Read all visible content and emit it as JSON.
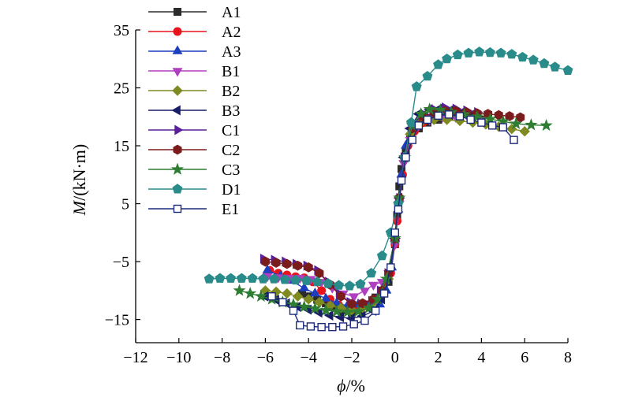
{
  "chart_data": {
    "type": "scatter",
    "title": "",
    "xlabel": {
      "var": "ϕ",
      "unit": "/%"
    },
    "ylabel": {
      "var": "M",
      "unit": "/(kN·m)"
    },
    "xlim": [
      -12,
      8
    ],
    "ylim": [
      -19,
      35
    ],
    "xticks": [
      -12,
      -10,
      -8,
      -6,
      -4,
      -2,
      0,
      2,
      4,
      6,
      8
    ],
    "yticks": [
      -15,
      -5,
      5,
      15,
      25,
      35
    ],
    "tick_labels_x": [
      "−12",
      "−10",
      "−8",
      "−6",
      "−4",
      "−2",
      "0",
      "2",
      "4",
      "6",
      "8"
    ],
    "tick_labels_y": [
      "−15",
      "−5",
      "5",
      "15",
      "25",
      "35"
    ],
    "legend_position": "top-left",
    "series": [
      {
        "name": "A1",
        "color": "#2b2b2b",
        "marker": "square",
        "points": [
          [
            -4.3,
            -10.5
          ],
          [
            -4,
            -11
          ],
          [
            -3.6,
            -11.6
          ],
          [
            -3.2,
            -12.2
          ],
          [
            -2.8,
            -12.8
          ],
          [
            -2.4,
            -13.4
          ],
          [
            -2,
            -13.8
          ],
          [
            -1.6,
            -13.4
          ],
          [
            -1.2,
            -12.4
          ],
          [
            -0.9,
            -11.2
          ],
          [
            -0.6,
            -10
          ],
          [
            -0.3,
            -8.5
          ],
          [
            0,
            -2
          ],
          [
            0.1,
            3
          ],
          [
            0.2,
            8
          ],
          [
            0.3,
            11
          ],
          [
            0.5,
            14
          ],
          [
            0.7,
            16.5
          ],
          [
            1.1,
            18
          ],
          [
            1.5,
            19
          ],
          [
            2,
            19.5
          ],
          [
            2.5,
            20
          ],
          [
            3,
            20
          ],
          [
            3.5,
            19.8
          ],
          [
            4,
            19.5
          ]
        ]
      },
      {
        "name": "A2",
        "color": "#e8141c",
        "marker": "circle",
        "points": [
          [
            -5.8,
            -6.5
          ],
          [
            -5.4,
            -7
          ],
          [
            -5,
            -7.3
          ],
          [
            -4.6,
            -7.6
          ],
          [
            -4.2,
            -7.8
          ],
          [
            -3.8,
            -8.5
          ],
          [
            -3.4,
            -10
          ],
          [
            -3,
            -11.5
          ],
          [
            -2.6,
            -12.5
          ],
          [
            -2.2,
            -13
          ],
          [
            -1.8,
            -13
          ],
          [
            -1.4,
            -12.6
          ],
          [
            -1,
            -11.6
          ],
          [
            -0.6,
            -10
          ],
          [
            -0.2,
            -7
          ],
          [
            0,
            -2
          ],
          [
            0.1,
            2
          ],
          [
            0.2,
            6
          ],
          [
            0.35,
            10
          ],
          [
            0.6,
            15
          ],
          [
            0.9,
            17.5
          ],
          [
            1.3,
            19
          ],
          [
            1.8,
            19.8
          ],
          [
            2.3,
            20.2
          ],
          [
            2.8,
            20.5
          ],
          [
            3.3,
            20.6
          ],
          [
            3.8,
            20.4
          ]
        ]
      },
      {
        "name": "A3",
        "color": "#1c3fbf",
        "marker": "triangle-up",
        "points": [
          [
            -5.9,
            -6.5
          ],
          [
            -5.3,
            -7.5
          ],
          [
            -4.8,
            -8.3
          ],
          [
            -4.2,
            -9.6
          ],
          [
            -3.7,
            -10.5
          ],
          [
            -3.2,
            -11.4
          ],
          [
            -2.7,
            -12.2
          ],
          [
            -2.2,
            -12.6
          ],
          [
            -1.7,
            -12.4
          ],
          [
            -1.2,
            -12.5
          ],
          [
            -0.7,
            -12.4
          ],
          [
            -0.4,
            -10
          ],
          [
            -0.15,
            -6
          ],
          [
            0,
            -1
          ],
          [
            0.15,
            4
          ],
          [
            0.3,
            10
          ],
          [
            0.5,
            15
          ],
          [
            0.8,
            18
          ],
          [
            1.2,
            19.5
          ],
          [
            1.7,
            20.2
          ],
          [
            2.2,
            20.4
          ],
          [
            2.7,
            20.3
          ]
        ]
      },
      {
        "name": "B1",
        "color": "#b03fc0",
        "marker": "triangle-down",
        "points": [
          [
            -5.9,
            -7.5
          ],
          [
            -5.4,
            -7.7
          ],
          [
            -4.9,
            -7.8
          ],
          [
            -4.4,
            -7.8
          ],
          [
            -3.9,
            -8
          ],
          [
            -3.4,
            -8.5
          ],
          [
            -2.9,
            -9.5
          ],
          [
            -2.4,
            -10.5
          ],
          [
            -1.9,
            -11
          ],
          [
            -1.4,
            -10
          ],
          [
            -1,
            -9
          ],
          [
            -0.6,
            -8.5
          ],
          [
            -0.3,
            -7
          ],
          [
            0,
            -2
          ],
          [
            0.2,
            5
          ],
          [
            0.4,
            12
          ],
          [
            0.7,
            16
          ],
          [
            1.1,
            18.5
          ],
          [
            1.6,
            19.5
          ],
          [
            2.2,
            20
          ],
          [
            2.8,
            20
          ],
          [
            3.4,
            19.8
          ],
          [
            4,
            19.5
          ]
        ]
      },
      {
        "name": "B2",
        "color": "#7f8a20",
        "marker": "diamond",
        "points": [
          [
            -6,
            -10
          ],
          [
            -5.5,
            -10.2
          ],
          [
            -5,
            -10.5
          ],
          [
            -4.5,
            -11
          ],
          [
            -4,
            -11.5
          ],
          [
            -3.5,
            -12
          ],
          [
            -3,
            -12.6
          ],
          [
            -2.5,
            -13
          ],
          [
            -2,
            -13.4
          ],
          [
            -1.5,
            -13
          ],
          [
            -1,
            -12
          ],
          [
            -0.6,
            -10.5
          ],
          [
            -0.3,
            -8
          ],
          [
            0,
            -1
          ],
          [
            0.2,
            6
          ],
          [
            0.4,
            13
          ],
          [
            0.7,
            17
          ],
          [
            1.2,
            19
          ],
          [
            1.8,
            19.5
          ],
          [
            2.4,
            19.5
          ],
          [
            3,
            19.3
          ],
          [
            3.6,
            19
          ],
          [
            4.2,
            18.7
          ],
          [
            4.8,
            18.3
          ],
          [
            5.4,
            17.9
          ],
          [
            6,
            17.5
          ]
        ]
      },
      {
        "name": "B3",
        "color": "#1a1e66",
        "marker": "triangle-left",
        "points": [
          [
            -6,
            -11
          ],
          [
            -5.5,
            -11.6
          ],
          [
            -5,
            -12.2
          ],
          [
            -4.5,
            -12.8
          ],
          [
            -4,
            -13.3
          ],
          [
            -3.5,
            -13.8
          ],
          [
            -3,
            -14.3
          ],
          [
            -2.5,
            -14.6
          ],
          [
            -2,
            -14.8
          ],
          [
            -1.5,
            -14.4
          ],
          [
            -1,
            -13.5
          ],
          [
            -0.6,
            -11.5
          ],
          [
            -0.3,
            -8
          ],
          [
            0,
            -1
          ],
          [
            0.2,
            6
          ],
          [
            0.4,
            13
          ],
          [
            0.7,
            18
          ],
          [
            1.1,
            20.5
          ],
          [
            1.6,
            21.3
          ],
          [
            2.1,
            21.5
          ],
          [
            2.6,
            21.2
          ],
          [
            3.1,
            20.8
          ],
          [
            3.6,
            20.5
          ]
        ]
      },
      {
        "name": "C1",
        "color": "#5a1f99",
        "marker": "triangle-right",
        "points": [
          [
            -6.1,
            -4.5
          ],
          [
            -5.6,
            -4.7
          ],
          [
            -5.1,
            -5
          ],
          [
            -4.6,
            -5.4
          ],
          [
            -4.1,
            -5.7
          ],
          [
            -3.6,
            -6.5
          ],
          [
            -3.1,
            -8.5
          ],
          [
            -2.6,
            -10.5
          ],
          [
            -2.1,
            -12
          ],
          [
            -1.6,
            -12.3
          ],
          [
            -1.1,
            -11.8
          ],
          [
            -0.7,
            -10
          ],
          [
            -0.35,
            -7
          ],
          [
            0,
            -1
          ],
          [
            0.2,
            6
          ],
          [
            0.4,
            13
          ],
          [
            0.8,
            18.5
          ],
          [
            1.3,
            20.5
          ],
          [
            1.8,
            21.3
          ],
          [
            2.3,
            21.6
          ],
          [
            2.8,
            21.4
          ],
          [
            3.3,
            21.1
          ],
          [
            3.8,
            20.8
          ]
        ]
      },
      {
        "name": "C2",
        "color": "#7b1c1c",
        "marker": "hexagon",
        "points": [
          [
            -6,
            -5
          ],
          [
            -5.5,
            -5.2
          ],
          [
            -5,
            -5.4
          ],
          [
            -4.5,
            -5.7
          ],
          [
            -4,
            -6
          ],
          [
            -3.5,
            -7
          ],
          [
            -3,
            -9
          ],
          [
            -2.5,
            -11
          ],
          [
            -2,
            -12.3
          ],
          [
            -1.5,
            -12.2
          ],
          [
            -1,
            -11.5
          ],
          [
            -0.6,
            -10
          ],
          [
            -0.3,
            -7
          ],
          [
            0,
            -1
          ],
          [
            0.2,
            6
          ],
          [
            0.45,
            13
          ],
          [
            0.8,
            18
          ],
          [
            1.3,
            20
          ],
          [
            1.8,
            20.7
          ],
          [
            2.3,
            21
          ],
          [
            2.8,
            21
          ],
          [
            3.3,
            20.8
          ],
          [
            3.8,
            20.6
          ],
          [
            4.3,
            20.5
          ],
          [
            4.8,
            20.3
          ],
          [
            5.3,
            20.1
          ],
          [
            5.8,
            19.9
          ]
        ]
      },
      {
        "name": "C3",
        "color": "#2e7d32",
        "marker": "star",
        "points": [
          [
            -7.2,
            -10
          ],
          [
            -6.7,
            -10.5
          ],
          [
            -6.2,
            -11
          ],
          [
            -5.7,
            -11.5
          ],
          [
            -5.2,
            -12
          ],
          [
            -4.7,
            -12.4
          ],
          [
            -4.2,
            -12.8
          ],
          [
            -3.7,
            -13.1
          ],
          [
            -3.2,
            -13.4
          ],
          [
            -2.7,
            -13.6
          ],
          [
            -2.2,
            -13.7
          ],
          [
            -1.7,
            -13.6
          ],
          [
            -1.2,
            -13
          ],
          [
            -0.8,
            -11.5
          ],
          [
            -0.4,
            -8
          ],
          [
            0,
            -1
          ],
          [
            0.2,
            6
          ],
          [
            0.45,
            13
          ],
          [
            0.8,
            18.5
          ],
          [
            1.2,
            20.5
          ],
          [
            1.6,
            21.3
          ],
          [
            2.1,
            21.2
          ],
          [
            2.6,
            20.8
          ],
          [
            3.2,
            20.4
          ],
          [
            3.8,
            20
          ],
          [
            4.4,
            19.6
          ],
          [
            5,
            19.2
          ],
          [
            5.6,
            18.8
          ],
          [
            6.3,
            18.6
          ],
          [
            7,
            18.5
          ]
        ]
      },
      {
        "name": "D1",
        "color": "#2a8b8b",
        "marker": "pentagon",
        "points": [
          [
            -8.6,
            -8
          ],
          [
            -8.1,
            -7.9
          ],
          [
            -7.6,
            -7.9
          ],
          [
            -7.1,
            -7.9
          ],
          [
            -6.6,
            -7.9
          ],
          [
            -6.1,
            -8
          ],
          [
            -5.6,
            -8
          ],
          [
            -5.1,
            -8.1
          ],
          [
            -4.6,
            -8.2
          ],
          [
            -4.1,
            -8.3
          ],
          [
            -3.6,
            -8.5
          ],
          [
            -3.1,
            -8.8
          ],
          [
            -2.6,
            -9.1
          ],
          [
            -2.1,
            -9.2
          ],
          [
            -1.6,
            -8.9
          ],
          [
            -1.1,
            -7
          ],
          [
            -0.6,
            -4
          ],
          [
            -0.2,
            0
          ],
          [
            0.15,
            5
          ],
          [
            0.45,
            13
          ],
          [
            0.75,
            19
          ],
          [
            1,
            25.2
          ],
          [
            1.5,
            27
          ],
          [
            2,
            29
          ],
          [
            2.4,
            30
          ],
          [
            2.9,
            30.7
          ],
          [
            3.4,
            31
          ],
          [
            3.9,
            31.2
          ],
          [
            4.4,
            31.1
          ],
          [
            4.9,
            31
          ],
          [
            5.4,
            30.8
          ],
          [
            5.9,
            30.3
          ],
          [
            6.4,
            29.8
          ],
          [
            6.9,
            29.2
          ],
          [
            7.4,
            28.6
          ],
          [
            8,
            28
          ]
        ]
      },
      {
        "name": "E1",
        "color": "#1c2a7a",
        "marker": "open-square",
        "points": [
          [
            -5.7,
            -11
          ],
          [
            -5.2,
            -12
          ],
          [
            -4.7,
            -13.5
          ],
          [
            -4.4,
            -16
          ],
          [
            -3.9,
            -16.2
          ],
          [
            -3.4,
            -16.3
          ],
          [
            -2.9,
            -16.3
          ],
          [
            -2.4,
            -16.2
          ],
          [
            -1.9,
            -15.8
          ],
          [
            -1.4,
            -15.2
          ],
          [
            -0.9,
            -13.5
          ],
          [
            -0.5,
            -10.5
          ],
          [
            -0.2,
            -6
          ],
          [
            0,
            0
          ],
          [
            0.15,
            4
          ],
          [
            0.3,
            9
          ],
          [
            0.5,
            13
          ],
          [
            0.8,
            16
          ],
          [
            1.1,
            18.5
          ],
          [
            1.5,
            19.5
          ],
          [
            2,
            20.2
          ],
          [
            2.5,
            20.4
          ],
          [
            3,
            20.1
          ],
          [
            3.5,
            19.5
          ],
          [
            4,
            19
          ],
          [
            4.5,
            18.5
          ],
          [
            5,
            18.2
          ],
          [
            5.5,
            16
          ]
        ]
      }
    ]
  }
}
